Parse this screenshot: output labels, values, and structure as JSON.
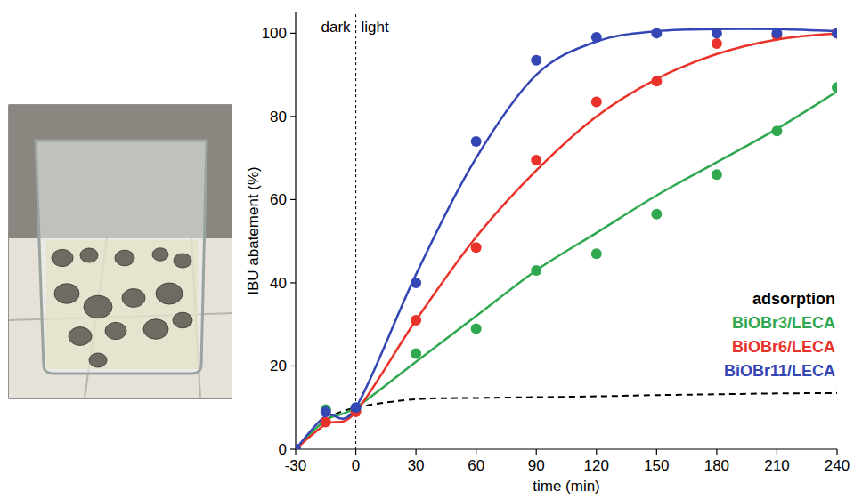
{
  "chart_data": {
    "type": "scatter",
    "x_label": "time (min)",
    "y_label": "IBU abatement (%)",
    "x": [
      -30,
      -15,
      0,
      30,
      60,
      90,
      120,
      150,
      180,
      210,
      240
    ],
    "xlim": [
      -30,
      240
    ],
    "xticks": [
      -30,
      0,
      30,
      60,
      90,
      120,
      150,
      180,
      210,
      240
    ],
    "ylim": [
      0,
      105
    ],
    "yticks": [
      0,
      20,
      40,
      60,
      80,
      100
    ],
    "grid": false,
    "legend": "lower right",
    "annotations": [
      {
        "text": "dark",
        "x": 0
      },
      {
        "text": "light",
        "x": 0
      }
    ],
    "series": [
      {
        "name": "adsorption",
        "color": "#000000",
        "type": "line",
        "line_style": "dashed",
        "values": [
          0,
          7,
          10,
          12,
          12.3,
          12.5,
          12.7,
          13,
          13.2,
          13.4,
          13.5
        ]
      },
      {
        "name": "BiOBr3/LECA",
        "color": "#2fa84f",
        "type": "scatter",
        "marker": "circle",
        "values": [
          0,
          9.5,
          9.5,
          23,
          29,
          43,
          47,
          56.5,
          66,
          76.5,
          87
        ],
        "fit": [
          0,
          7,
          10,
          21,
          32,
          43,
          52,
          61,
          69,
          77,
          86
        ]
      },
      {
        "name": "BiOBr6/LECA",
        "color": "#e8322a",
        "type": "scatter",
        "marker": "circle",
        "values": [
          0,
          6.5,
          9,
          31,
          48.5,
          69.5,
          83.5,
          88.5,
          97.5,
          99.5,
          100
        ],
        "fit": [
          0,
          6,
          9,
          31,
          51,
          67,
          80,
          89,
          95,
          98.5,
          100
        ]
      },
      {
        "name": "BiOBr11/LECA",
        "color": "#3346b4",
        "type": "scatter",
        "marker": "circle",
        "values": [
          0,
          9,
          10,
          40,
          74,
          93.5,
          99,
          100,
          100,
          100,
          100
        ],
        "fit": [
          0,
          8,
          10,
          42,
          70,
          90,
          98,
          100.5,
          101,
          101,
          100.5
        ]
      }
    ]
  }
}
